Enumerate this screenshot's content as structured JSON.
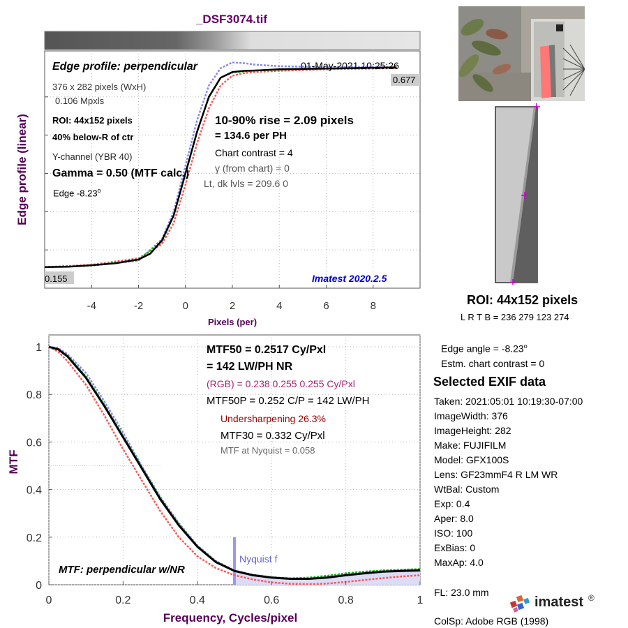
{
  "file_title": "_DSF3074.tif",
  "colors": {
    "title": "#660066",
    "axis_label": "#550055",
    "black_curve": "#000000",
    "green_curve": "#11bb11",
    "blue_curve": "#8888ee",
    "red_curve": "#ff5555",
    "roi_marker": "#cc00cc",
    "version_text": "#0000cc",
    "undersharpening": "#990000",
    "rgb_line": "#aa2277"
  },
  "edge_panel": {
    "title": "Edge profile: perpendicular",
    "date": "01-May-2021 10:25:26",
    "size_line": "376 x 282 pixels (WxH)",
    "mpxls": "0.106 Mpxls",
    "roi": "ROI:  44x152 pixels",
    "location": "40% below-R of ctr",
    "channel": "Y-channel  (YBR 40)",
    "gamma": "Gamma = 0.50 (MTF calc.)",
    "edge_angle_label": "Edge  -8.23",
    "degree": "o",
    "rise": "10-90% rise = 2.09 pixels",
    "per_ph": "=  134.6 per PH",
    "chart_contrast": "Chart contrast = 4",
    "gamma_from_chart": "γ (from chart) =     0",
    "lt_dk": "Lt, dk lvls = 209.6  0",
    "version": "Imatest 2020.2.5",
    "right_level": "0.677",
    "left_level": "0.155",
    "ylabel": "Edge profile (linear)",
    "xlabel": "Pixels (per)"
  },
  "mtf_panel": {
    "mtf50": "MTF50 = 0.2517 Cy/Pxl",
    "lwph": "=  142 LW/PH  NR",
    "rgb": "(RGB) = 0.238  0.255  0.255 Cy/Pxl",
    "mtf50p": "MTF50P = 0.252 C/P = 142 LW/PH",
    "undersharpening": "Undersharpening 26.3%",
    "mtf30": "MTF30 = 0.332 Cy/Pxl",
    "nyquist_mtf": "MTF at Nyquist = 0.058",
    "nyquist_label": "Nyquist f",
    "label": "MTF: perpendicular w/NR",
    "ylabel": "MTF",
    "xlabel": "Frequency, Cycles/pixel"
  },
  "roi_panel": {
    "label": "ROI:  44x152 pixels",
    "coords": "L R  T B = 236 279  123 274"
  },
  "side_info": {
    "edge_angle": "Edge angle = -8.23",
    "degree": "o",
    "contrast": "Estm. chart contrast = 0",
    "exif_title": "Selected EXIF data",
    "exif": [
      "Taken: 2021:05:01 10:19:30-07:00",
      "ImageWidth:  376",
      "ImageHeight:  282",
      "Make:  FUJIFILM",
      "Model:  GFX100S",
      "Lens:   GF23mmF4 R LM WR",
      "WtBal:  Custom",
      "Exp:    0.4",
      "Aper:   8.0",
      "ISO:    100",
      "ExBias:  0",
      "MaxAp:  4.0"
    ],
    "fl": "FL:      23.0 mm",
    "colsp": "ColSp:  Adobe RGB (1998)",
    "logo_text": "imatest",
    "logo_mark": "®"
  },
  "chart_data": [
    {
      "type": "line",
      "title": "Edge profile: perpendicular",
      "xlabel": "Pixels (per)",
      "ylabel": "Edge profile (linear)",
      "xlim": [
        -6,
        10
      ],
      "ylim": [
        0.1,
        0.72
      ],
      "x_ticks": [
        -4,
        -2,
        0,
        2,
        4,
        6,
        8
      ],
      "grid": true,
      "series": [
        {
          "color_key": "black_curve",
          "x": [
            -6,
            -5,
            -4,
            -3,
            -2,
            -1.5,
            -1,
            -0.5,
            0,
            0.5,
            1,
            1.5,
            2,
            2.5,
            3,
            4,
            5,
            6,
            7,
            8,
            9
          ],
          "values": [
            0.155,
            0.156,
            0.16,
            0.165,
            0.175,
            0.19,
            0.225,
            0.29,
            0.4,
            0.51,
            0.6,
            0.65,
            0.665,
            0.668,
            0.669,
            0.672,
            0.673,
            0.674,
            0.675,
            0.676,
            0.677
          ]
        },
        {
          "color_key": "blue_curve",
          "x": [
            -6,
            -4,
            -2,
            -1,
            -0.5,
            0,
            0.5,
            1,
            1.5,
            2,
            2.5,
            3,
            4,
            6,
            8,
            9
          ],
          "values": [
            0.155,
            0.159,
            0.172,
            0.228,
            0.3,
            0.42,
            0.54,
            0.63,
            0.675,
            0.69,
            0.688,
            0.684,
            0.68,
            0.678,
            0.678,
            0.677
          ]
        },
        {
          "color_key": "red_curve",
          "x": [
            -6,
            -4,
            -2,
            -1,
            -0.5,
            0,
            0.5,
            1,
            1.5,
            2,
            2.5,
            3,
            4,
            6,
            8,
            9
          ],
          "values": [
            0.155,
            0.161,
            0.178,
            0.215,
            0.27,
            0.37,
            0.48,
            0.57,
            0.63,
            0.655,
            0.662,
            0.665,
            0.668,
            0.672,
            0.674,
            0.675
          ]
        },
        {
          "color_key": "green_curve",
          "x": [
            -6,
            -4,
            -2,
            -1,
            -0.5,
            0,
            0.5,
            1,
            1.5,
            2,
            3,
            4,
            6,
            8,
            9
          ],
          "values": [
            0.155,
            0.159,
            0.174,
            0.222,
            0.29,
            0.4,
            0.51,
            0.6,
            0.65,
            0.664,
            0.669,
            0.671,
            0.674,
            0.676,
            0.677
          ]
        }
      ]
    },
    {
      "type": "line",
      "title": "MTF: perpendicular w/NR",
      "xlabel": "Frequency, Cycles/pixel",
      "ylabel": "MTF",
      "xlim": [
        0,
        1
      ],
      "ylim": [
        0,
        1.05
      ],
      "x_ticks": [
        0,
        0.2,
        0.4,
        0.6,
        0.8,
        1
      ],
      "y_ticks": [
        0,
        0.2,
        0.4,
        0.6,
        0.8,
        1
      ],
      "grid": true,
      "nyquist": 0.5,
      "series": [
        {
          "color_key": "black_curve",
          "x": [
            0,
            0.025,
            0.05,
            0.1,
            0.15,
            0.2,
            0.25,
            0.3,
            0.35,
            0.4,
            0.45,
            0.5,
            0.55,
            0.6,
            0.65,
            0.7,
            0.75,
            0.8,
            0.85,
            0.9,
            0.95,
            1.0
          ],
          "values": [
            1.0,
            0.99,
            0.96,
            0.87,
            0.75,
            0.62,
            0.49,
            0.36,
            0.25,
            0.16,
            0.095,
            0.058,
            0.04,
            0.03,
            0.025,
            0.025,
            0.03,
            0.04,
            0.048,
            0.055,
            0.058,
            0.06
          ]
        },
        {
          "color_key": "blue_curve",
          "x": [
            0,
            0.025,
            0.05,
            0.1,
            0.15,
            0.2,
            0.25,
            0.3,
            0.35,
            0.4,
            0.45,
            0.5,
            0.55,
            0.6,
            0.65,
            0.7,
            0.75,
            0.8,
            0.85,
            0.9,
            0.95,
            1.0
          ],
          "values": [
            1.0,
            0.995,
            0.97,
            0.89,
            0.77,
            0.64,
            0.5,
            0.37,
            0.26,
            0.165,
            0.1,
            0.06,
            0.042,
            0.032,
            0.026,
            0.026,
            0.034,
            0.045,
            0.052,
            0.058,
            0.062,
            0.064
          ]
        },
        {
          "color_key": "red_curve",
          "x": [
            0,
            0.025,
            0.05,
            0.1,
            0.15,
            0.2,
            0.25,
            0.3,
            0.35,
            0.4,
            0.45,
            0.5,
            0.55,
            0.6,
            0.65,
            0.7,
            0.75,
            0.8,
            0.85,
            0.9,
            0.95,
            1.0
          ],
          "values": [
            1.0,
            0.98,
            0.94,
            0.84,
            0.71,
            0.57,
            0.44,
            0.31,
            0.2,
            0.12,
            0.07,
            0.04,
            0.022,
            0.01,
            0.004,
            0.002,
            0.005,
            0.012,
            0.02,
            0.028,
            0.035,
            0.04
          ]
        },
        {
          "color_key": "green_curve",
          "x": [
            0,
            0.025,
            0.05,
            0.1,
            0.15,
            0.2,
            0.25,
            0.3,
            0.35,
            0.4,
            0.45,
            0.5,
            0.55,
            0.6,
            0.65,
            0.7,
            0.75,
            0.8,
            0.85,
            0.9,
            0.95,
            1.0
          ],
          "values": [
            1.0,
            0.99,
            0.965,
            0.875,
            0.755,
            0.625,
            0.495,
            0.365,
            0.255,
            0.162,
            0.097,
            0.059,
            0.041,
            0.031,
            0.027,
            0.03,
            0.038,
            0.048,
            0.055,
            0.06,
            0.063,
            0.066
          ]
        }
      ]
    }
  ]
}
